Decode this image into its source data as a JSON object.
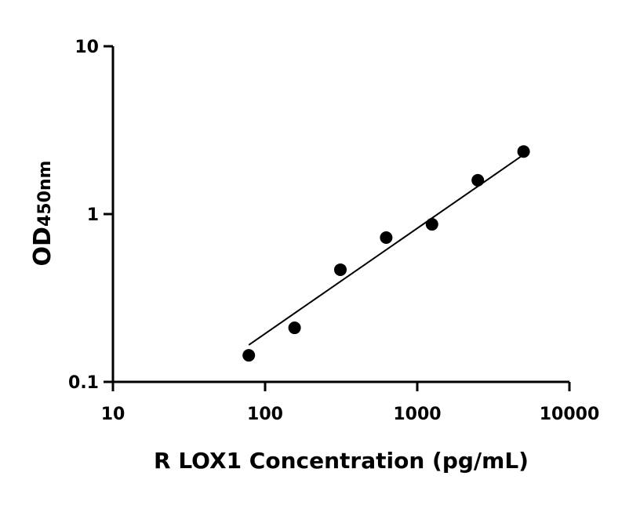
{
  "chart_data": {
    "type": "scatter",
    "xlabel": "R LOX1 Concentration (pg/mL)",
    "ylabel_main": "OD",
    "ylabel_sub": "450nm",
    "x_scale": "log",
    "y_scale": "log",
    "xlim": [
      10,
      10000
    ],
    "ylim": [
      0.1,
      10
    ],
    "x_ticks": [
      10,
      100,
      1000,
      10000
    ],
    "x_tick_labels": [
      "10",
      "100",
      "1000",
      "10000"
    ],
    "y_ticks": [
      0.1,
      1,
      10
    ],
    "y_tick_labels": [
      "0.1",
      "1",
      "10"
    ],
    "grid": false,
    "points": {
      "x": [
        78.125,
        156.25,
        312.5,
        625,
        1250,
        2500,
        5000
      ],
      "y": [
        0.144,
        0.21,
        0.466,
        0.724,
        0.869,
        1.59,
        2.36
      ]
    },
    "fit_line": {
      "x": [
        78.125,
        5000
      ],
      "y": [
        0.166,
        2.26
      ]
    },
    "colors": {
      "points": "#000000",
      "line": "#000000",
      "axes": "#000000"
    }
  }
}
